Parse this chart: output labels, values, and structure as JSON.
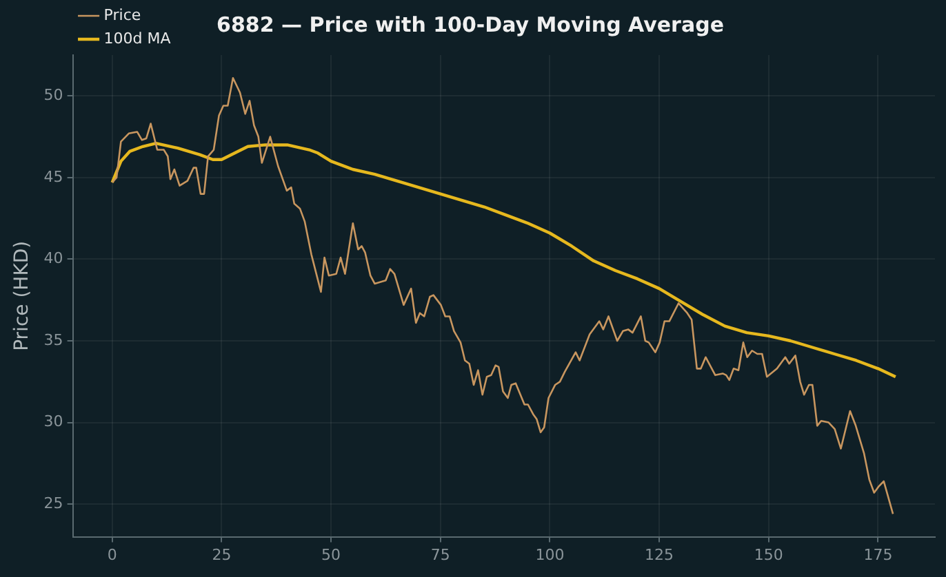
{
  "chart_data": {
    "type": "line",
    "title": "6882 — Price with 100-Day Moving Average",
    "ylabel": "Price (HKD)",
    "xlim": [
      -9,
      188
    ],
    "xticks": [
      0,
      25,
      50,
      75,
      100,
      125,
      150,
      175
    ],
    "ylim": [
      23,
      52.5
    ],
    "yticks": [
      25,
      30,
      35,
      40,
      45,
      50
    ],
    "grid": true,
    "legend": "top left",
    "marker": "none",
    "line_style": "solid",
    "series": [
      {
        "name": "Price",
        "color": "#c8965f",
        "x": [
          0,
          1,
          2,
          3.8,
          5.7,
          6.8,
          7.8,
          8.8,
          10.3,
          11.8,
          12.7,
          13.3,
          14.2,
          15.4,
          17.2,
          18.6,
          19.2,
          20.2,
          21,
          21.9,
          23.2,
          24.4,
          25.4,
          26.4,
          27.6,
          29.2,
          30.4,
          31.4,
          32.4,
          33.4,
          34.2,
          36.1,
          37.9,
          39.9,
          40.9,
          41.6,
          42.9,
          44,
          45.5,
          47.7,
          48.5,
          49.5,
          51.2,
          52.2,
          53.2,
          55,
          56.2,
          57,
          57.8,
          59,
          60,
          62.5,
          63.5,
          64.5,
          66.6,
          68.3,
          69.4,
          70.3,
          71.3,
          72.6,
          73.4,
          75.1,
          76.1,
          77.1,
          78.1,
          79.6,
          80.6,
          81.6,
          82.6,
          83.6,
          84.6,
          85.6,
          86.6,
          87.6,
          88.3,
          89.3,
          90.4,
          91.2,
          92.2,
          94.2,
          95,
          96.2,
          97,
          97.9,
          98.7,
          99.7,
          101.2,
          102.3,
          103.4,
          105.9,
          106.8,
          109.1,
          111.3,
          112.2,
          113.4,
          115.4,
          116.7,
          117.9,
          118.9,
          120.8,
          121.8,
          122.6,
          124.1,
          125.1,
          126.2,
          127.3,
          129.4,
          131.4,
          132.4,
          133.6,
          134.5,
          135.6,
          137.8,
          139.5,
          140.3,
          141,
          142,
          143.1,
          144.2,
          145.1,
          146.2,
          147.4,
          148.5,
          149.6,
          151.9,
          153.8,
          154.7,
          156.1,
          157.2,
          158.1,
          159.2,
          160,
          161.1,
          162,
          163.7,
          165.1,
          166.5,
          168.6,
          169.9,
          171.8,
          173,
          174.1,
          175.2,
          176.3,
          178.4
        ],
        "values": [
          44.7,
          45.0,
          47.2,
          47.7,
          47.8,
          47.3,
          47.4,
          48.3,
          46.7,
          46.7,
          46.3,
          44.9,
          45.5,
          44.5,
          44.8,
          45.6,
          45.6,
          44.0,
          44.0,
          46.3,
          46.7,
          48.8,
          49.4,
          49.4,
          51.1,
          50.2,
          48.9,
          49.7,
          48.2,
          47.5,
          45.9,
          47.5,
          45.7,
          44.2,
          44.4,
          43.4,
          43.1,
          42.3,
          40.3,
          38.0,
          40.1,
          39.0,
          39.1,
          40.1,
          39.1,
          42.2,
          40.6,
          40.8,
          40.4,
          39.0,
          38.5,
          38.7,
          39.4,
          39.1,
          37.2,
          38.2,
          36.1,
          36.7,
          36.5,
          37.7,
          37.8,
          37.2,
          36.5,
          36.5,
          35.6,
          34.9,
          33.8,
          33.6,
          32.3,
          33.2,
          31.7,
          32.8,
          32.9,
          33.5,
          33.4,
          31.9,
          31.5,
          32.3,
          32.4,
          31.1,
          31.1,
          30.5,
          30.2,
          29.4,
          29.7,
          31.5,
          32.3,
          32.5,
          33.1,
          34.3,
          33.8,
          35.4,
          36.2,
          35.7,
          36.5,
          35.0,
          35.6,
          35.7,
          35.5,
          36.5,
          35.0,
          34.9,
          34.3,
          34.9,
          36.2,
          36.2,
          37.3,
          36.7,
          36.3,
          33.3,
          33.3,
          34.0,
          32.9,
          33.0,
          32.9,
          32.6,
          33.3,
          33.2,
          34.9,
          34.0,
          34.4,
          34.2,
          34.2,
          32.8,
          33.3,
          34.0,
          33.6,
          34.1,
          32.5,
          31.7,
          32.3,
          32.3,
          29.8,
          30.1,
          30.0,
          29.6,
          28.4,
          30.7,
          29.8,
          28.1,
          26.5,
          25.7,
          26.1,
          26.4,
          24.4
        ]
      },
      {
        "name": "100d MA",
        "color": "#e6b81e",
        "x": [
          0,
          2,
          4,
          7,
          10,
          15,
          20,
          23,
          25,
          28,
          31,
          35,
          40,
          45,
          47,
          50,
          55,
          60,
          65,
          70,
          75,
          80,
          85,
          90,
          95,
          100,
          105,
          110,
          115,
          120,
          125,
          130,
          135,
          140,
          145,
          150,
          155,
          160,
          165,
          170,
          175,
          179
        ],
        "values": [
          44.7,
          46.0,
          46.6,
          46.9,
          47.1,
          46.8,
          46.4,
          46.1,
          46.1,
          46.5,
          46.9,
          47.0,
          47.0,
          46.7,
          46.5,
          46.0,
          45.5,
          45.2,
          44.8,
          44.4,
          44.0,
          43.6,
          43.2,
          42.7,
          42.2,
          41.6,
          40.8,
          39.9,
          39.3,
          38.8,
          38.2,
          37.4,
          36.6,
          35.9,
          35.5,
          35.3,
          35.0,
          34.6,
          34.2,
          33.8,
          33.3,
          32.8
        ]
      }
    ]
  }
}
